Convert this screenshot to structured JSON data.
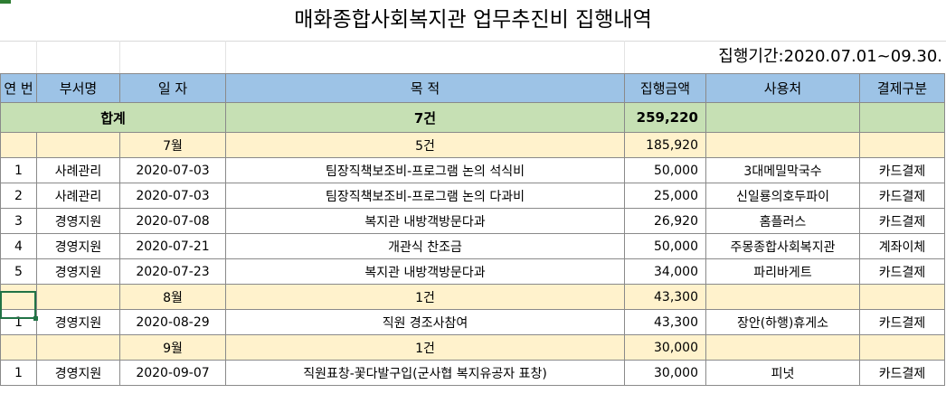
{
  "sheet": {
    "title": "매화종합사회복지관 업무추진비 집행내역",
    "period": "집행기간:2020.07.01~09.30."
  },
  "columns": [
    "연 번",
    "부서명",
    "일    자",
    "목      적",
    "집행금액",
    "사용처",
    "결제구분"
  ],
  "total": {
    "label": "합계",
    "count": "7건",
    "amount": "259,220"
  },
  "months": [
    {
      "month": "7월",
      "count": "5건",
      "amount": "185,920",
      "rows": [
        {
          "no": "1",
          "dept": "사례관리",
          "date": "2020-07-03",
          "purpose": "팀장직책보조비-프로그램 논의 석식비",
          "amount": "50,000",
          "vendor": "3대메밀막국수",
          "payment": "카드결제"
        },
        {
          "no": "2",
          "dept": "사례관리",
          "date": "2020-07-03",
          "purpose": "팀장직책보조비-프로그램 논의 다과비",
          "amount": "25,000",
          "vendor": "신일룡의호두파이",
          "payment": "카드결제"
        },
        {
          "no": "3",
          "dept": "경영지원",
          "date": "2020-07-08",
          "purpose": "복지관 내방객방문다과",
          "amount": "26,920",
          "vendor": "홈플러스",
          "payment": "카드결제"
        },
        {
          "no": "4",
          "dept": "경영지원",
          "date": "2020-07-21",
          "purpose": "개관식 찬조금",
          "amount": "50,000",
          "vendor": "주몽종합사회복지관",
          "payment": "계좌이체"
        },
        {
          "no": "5",
          "dept": "경영지원",
          "date": "2020-07-23",
          "purpose": "복지관 내방객방문다과",
          "amount": "34,000",
          "vendor": "파리바게트",
          "payment": "카드결제"
        }
      ]
    },
    {
      "month": "8월",
      "count": "1건",
      "amount": "43,300",
      "rows": [
        {
          "no": "1",
          "dept": "경영지원",
          "date": "2020-08-29",
          "purpose": "직원 경조사참여",
          "amount": "43,300",
          "vendor": "장안(하행)휴게소",
          "payment": "카드결제"
        }
      ]
    },
    {
      "month": "9월",
      "count": "1건",
      "amount": "30,000",
      "rows": [
        {
          "no": "1",
          "dept": "경영지원",
          "date": "2020-09-07",
          "purpose": "직원표창-꽃다발구입(군사협 복지유공자 표창)",
          "amount": "30,000",
          "vendor": "피넛",
          "payment": "카드결제"
        }
      ]
    }
  ],
  "colors": {
    "header": "#9dc3e6",
    "total": "#c6e0b4",
    "month": "#fff2cc",
    "selection": "#217346"
  }
}
